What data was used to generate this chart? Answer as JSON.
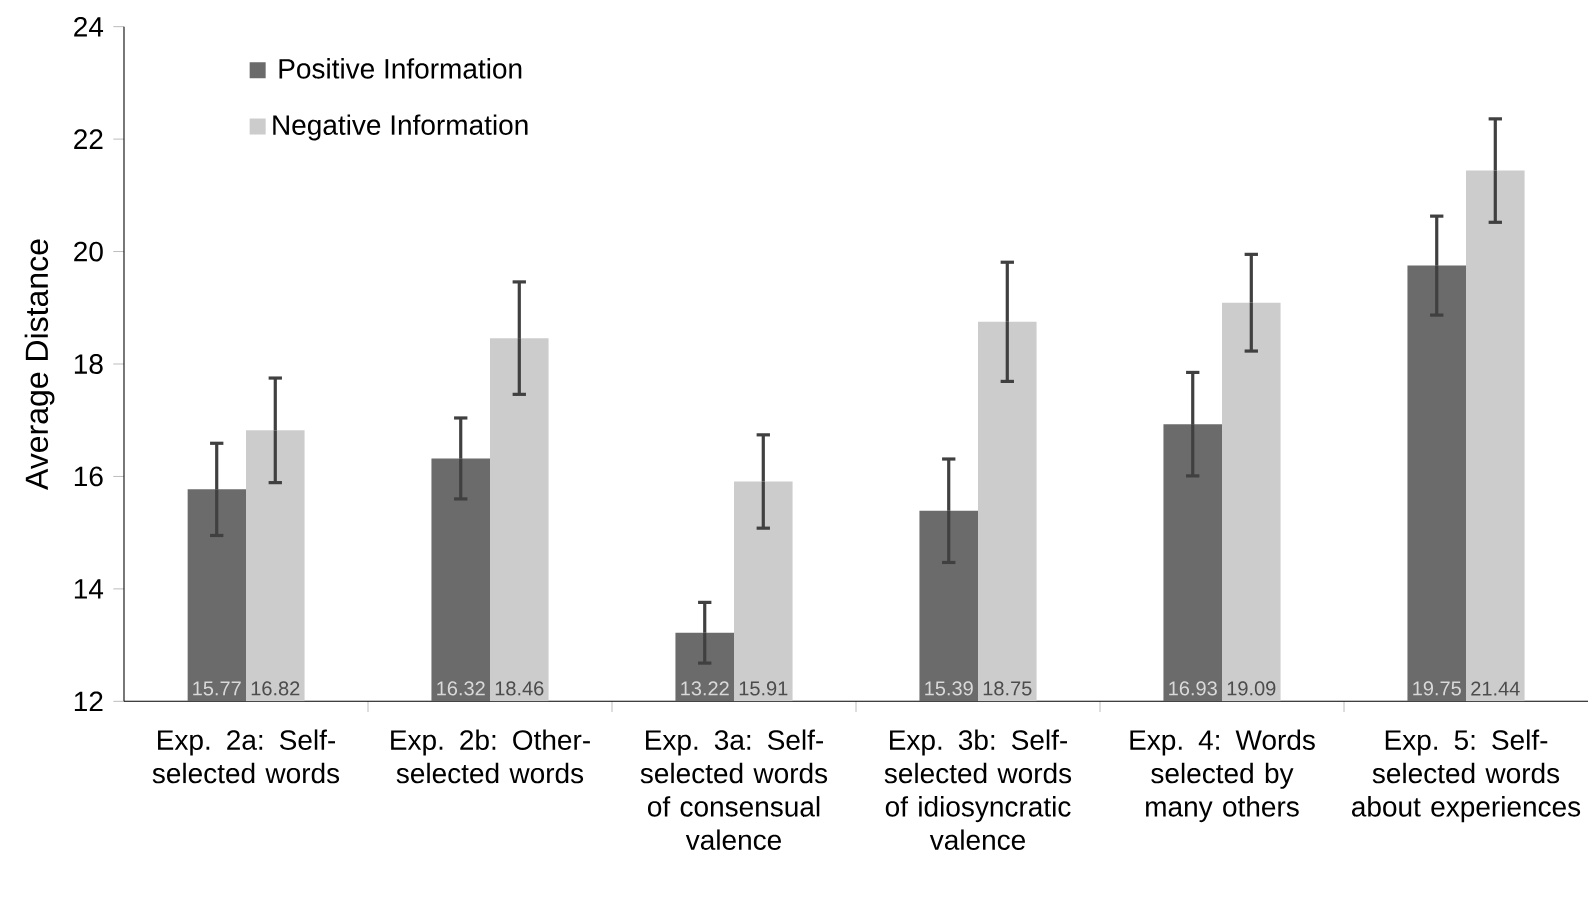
{
  "chart_data": {
    "type": "bar",
    "ylabel": "Average Distance",
    "categories": [
      "Exp. 2a: Self-selected words",
      "Exp. 2b: Other-selected words",
      "Exp. 3a: Self-selected words of consensual valence",
      "Exp. 3b: Self-selected words of idiosyncratic valence",
      "Exp. 4: Words selected by many others",
      "Exp. 5: Self-selected words about experiences"
    ],
    "series": [
      {
        "name": "Positive Information",
        "color": "#6b6b6b",
        "values": [
          15.77,
          16.32,
          13.22,
          15.39,
          16.93,
          19.75
        ],
        "errors": [
          0.82,
          0.72,
          0.54,
          0.92,
          0.92,
          0.88
        ],
        "value_labels": [
          "15.77",
          "16.32",
          "13.22",
          "15.39",
          "16.93",
          "19.75"
        ]
      },
      {
        "name": "Negative Information",
        "color": "#cccccc",
        "values": [
          16.82,
          18.46,
          15.91,
          18.75,
          19.09,
          21.44
        ],
        "errors": [
          0.93,
          1.0,
          0.83,
          1.06,
          0.86,
          0.92
        ],
        "value_labels": [
          "16.82",
          "18.46",
          "15.91",
          "18.75",
          "19.09",
          "21.44"
        ]
      }
    ],
    "ylim": [
      12,
      24
    ],
    "yticks": [
      12,
      14,
      16,
      18,
      20,
      22,
      24
    ],
    "grid": false,
    "legend": "top left"
  }
}
